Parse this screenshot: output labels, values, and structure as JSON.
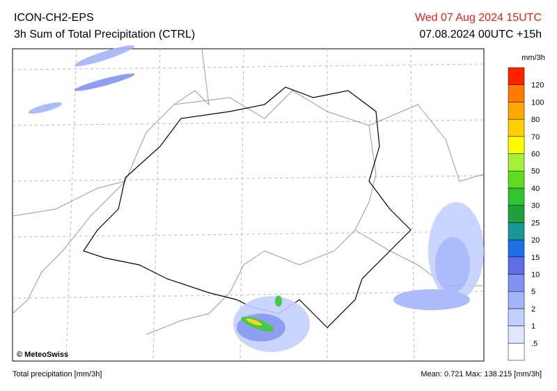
{
  "header": {
    "model": "ICON-CH2-EPS",
    "product": "3h Sum of Total Precipitation (CTRL)",
    "valid_time": "Wed 07 Aug 2024 15UTC",
    "run_time": "07.08.2024 00UTC +15h"
  },
  "map": {
    "copyright": "© MeteoSwiss"
  },
  "legend": {
    "unit": "mm/3h",
    "labels": [
      ".5",
      "1",
      "2",
      "5",
      "10",
      "15",
      "20",
      "25",
      "30",
      "40",
      "50",
      "60",
      "70",
      "80",
      "100",
      "120"
    ],
    "colors": [
      "#ffffff",
      "#dfe6ff",
      "#c3d0ff",
      "#a3b5fa",
      "#8193f2",
      "#5f6ee8",
      "#1f6fe6",
      "#1b9696",
      "#1fa03a",
      "#32c332",
      "#5fdc1e",
      "#a8ef3a",
      "#fffb00",
      "#ffd000",
      "#ffa800",
      "#ff7a00",
      "#ff2200"
    ]
  },
  "footer": {
    "variable": "Total precipitation [mm/3h]",
    "stats": "Mean:  0.721 Max: 138.215 [mm/3h]"
  }
}
